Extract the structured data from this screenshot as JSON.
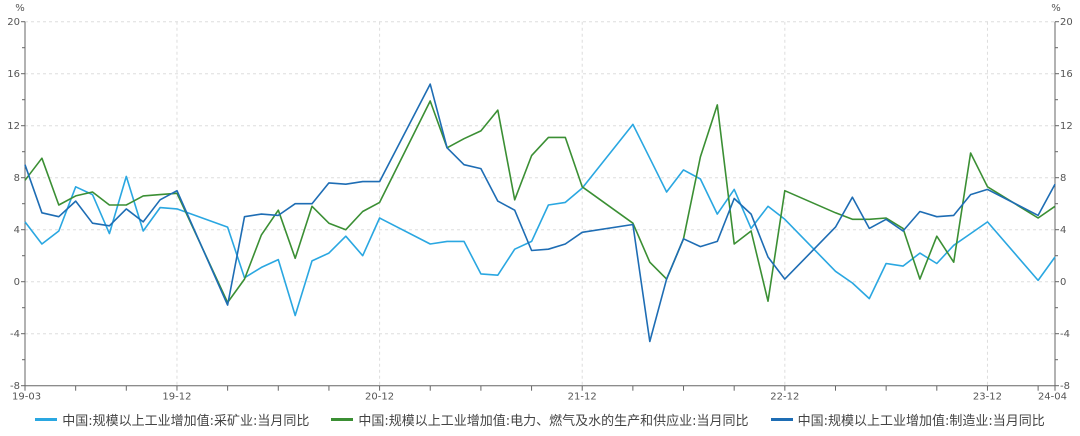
{
  "chart_data": {
    "type": "line",
    "y_unit_left": "%",
    "y_unit_right": "%",
    "ylim": [
      -8,
      20
    ],
    "y_ticks": [
      -8,
      -4,
      0,
      4,
      8,
      12,
      16,
      20
    ],
    "x_tick_labels": [
      "19-03",
      "19-12",
      "20-12",
      "21-12",
      "22-12",
      "23-12",
      "24-04"
    ],
    "grid": true,
    "legend_position": "bottom",
    "x": [
      "19-03",
      "19-04",
      "19-05",
      "19-06",
      "19-07",
      "19-08",
      "19-09",
      "19-10",
      "19-11",
      "19-12",
      "20-01",
      "20-02",
      "20-03",
      "20-04",
      "20-05",
      "20-06",
      "20-07",
      "20-08",
      "20-09",
      "20-10",
      "20-11",
      "20-12",
      "21-01",
      "21-02",
      "21-03",
      "21-04",
      "21-05",
      "21-06",
      "21-07",
      "21-08",
      "21-09",
      "21-10",
      "21-11",
      "21-12",
      "22-01",
      "22-02",
      "22-03",
      "22-04",
      "22-05",
      "22-06",
      "22-07",
      "22-08",
      "22-09",
      "22-10",
      "22-11",
      "22-12",
      "23-01",
      "23-02",
      "23-03",
      "23-04",
      "23-05",
      "23-06",
      "23-07",
      "23-08",
      "23-09",
      "23-10",
      "23-11",
      "23-12",
      "24-01",
      "24-02",
      "24-03",
      "24-04"
    ],
    "series": [
      {
        "name": "中国:规模以上工业增加值:采矿业:当月同比",
        "color": "#2aa7e1",
        "values": [
          4.6,
          2.9,
          3.9,
          7.3,
          6.7,
          3.7,
          8.1,
          3.9,
          5.7,
          5.6,
          null,
          null,
          4.2,
          0.3,
          1.1,
          1.7,
          -2.6,
          1.6,
          2.2,
          3.5,
          2.0,
          4.9,
          null,
          null,
          2.9,
          3.1,
          3.1,
          0.6,
          0.5,
          2.5,
          3.1,
          5.9,
          6.1,
          7.2,
          null,
          null,
          12.1,
          9.5,
          6.9,
          8.6,
          7.9,
          5.2,
          7.1,
          4.1,
          5.8,
          4.8,
          null,
          null,
          0.8,
          -0.1,
          -1.3,
          1.4,
          1.2,
          2.2,
          1.4,
          2.8,
          3.7,
          4.6,
          null,
          null,
          0.1,
          1.9
        ]
      },
      {
        "name": "中国:规模以上工业增加值:电力、燃气及水的生产和供应业:当月同比",
        "color": "#3b8f34",
        "values": [
          7.8,
          9.5,
          5.9,
          6.6,
          6.9,
          5.9,
          5.9,
          6.6,
          6.7,
          6.8,
          null,
          null,
          -1.6,
          0.2,
          3.6,
          5.5,
          1.8,
          5.8,
          4.5,
          4.0,
          5.4,
          6.1,
          null,
          null,
          13.9,
          10.3,
          11.0,
          11.6,
          13.2,
          6.3,
          9.7,
          11.1,
          11.1,
          7.3,
          null,
          null,
          4.5,
          1.5,
          0.2,
          3.3,
          9.6,
          13.6,
          2.9,
          3.9,
          -1.5,
          7.0,
          null,
          null,
          5.3,
          4.8,
          4.8,
          4.9,
          4.1,
          0.2,
          3.5,
          1.5,
          9.9,
          7.3,
          null,
          null,
          4.9,
          5.8
        ]
      },
      {
        "name": "中国:规模以上工业增加值:制造业:当月同比",
        "color": "#1e6db4",
        "values": [
          9.0,
          5.3,
          5.0,
          6.2,
          4.5,
          4.3,
          5.6,
          4.6,
          6.3,
          7.0,
          null,
          null,
          -1.8,
          5.0,
          5.2,
          5.1,
          6.0,
          6.0,
          7.6,
          7.5,
          7.7,
          7.7,
          null,
          null,
          15.2,
          10.3,
          9.0,
          8.7,
          6.2,
          5.5,
          2.4,
          2.5,
          2.9,
          3.8,
          null,
          null,
          4.4,
          -4.6,
          0.2,
          3.3,
          2.7,
          3.1,
          6.4,
          5.2,
          1.9,
          0.2,
          null,
          null,
          4.2,
          6.5,
          4.1,
          4.8,
          3.9,
          5.4,
          5.0,
          5.1,
          6.7,
          7.1,
          null,
          null,
          5.1,
          7.5
        ]
      }
    ]
  }
}
